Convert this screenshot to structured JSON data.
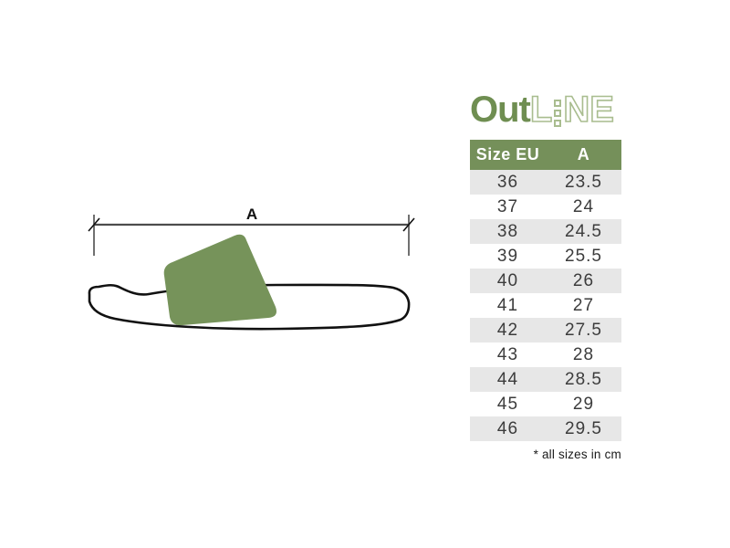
{
  "logo": {
    "solid": "Out",
    "outline_l": "L",
    "outline_ne": "NE"
  },
  "drawing": {
    "dimension_label": "A"
  },
  "table": {
    "headers": [
      "Size EU",
      "A"
    ],
    "rows": [
      [
        "36",
        "23.5"
      ],
      [
        "37",
        "24"
      ],
      [
        "38",
        "24.5"
      ],
      [
        "39",
        "25.5"
      ],
      [
        "40",
        "26"
      ],
      [
        "41",
        "27"
      ],
      [
        "42",
        "27.5"
      ],
      [
        "43",
        "28"
      ],
      [
        "44",
        "28.5"
      ],
      [
        "45",
        "29"
      ],
      [
        "46",
        "29.5"
      ]
    ]
  },
  "footnote": "* all sizes in cm",
  "colors": {
    "brand_green": "#75905a",
    "logo_solid": "#6f8e51",
    "logo_outline": "#a9bd8f",
    "row_alt": "#e7e7e7",
    "strap_green": "#76935a",
    "text_dark": "#3c3c3c",
    "dimension_line": "#4d4d4d",
    "sole_outline": "#111111"
  }
}
